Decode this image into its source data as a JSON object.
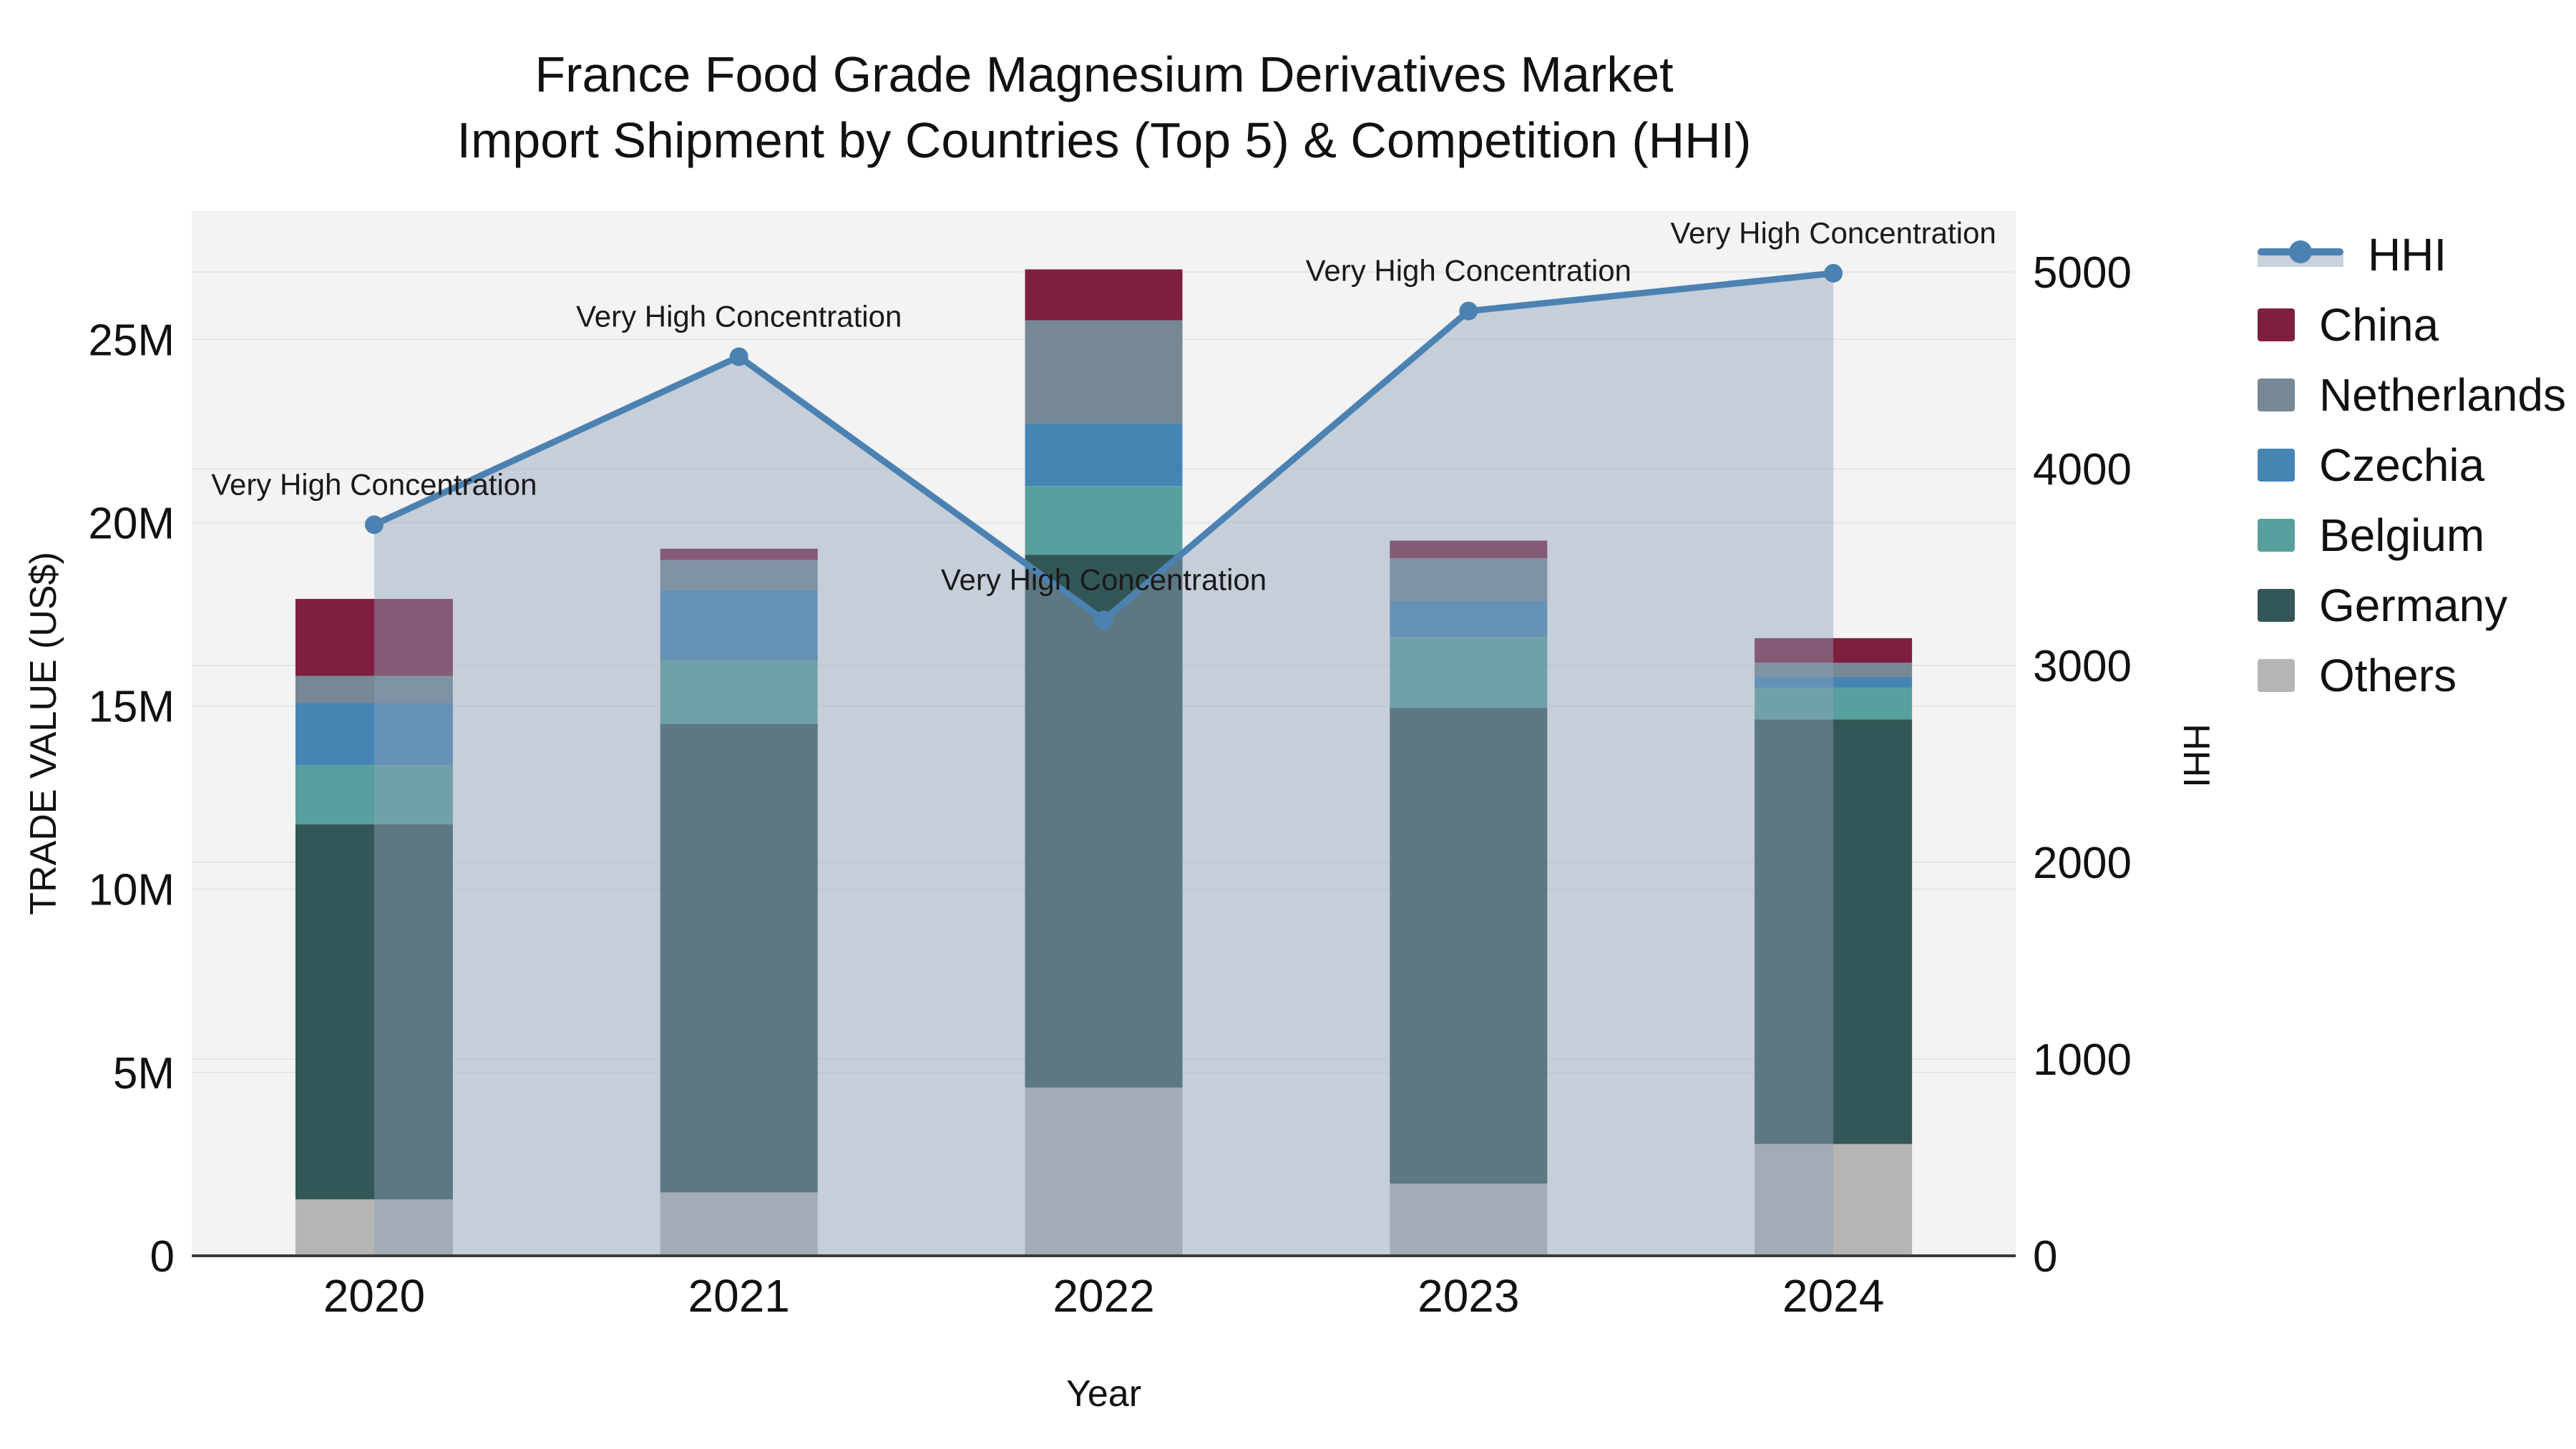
{
  "title": {
    "line1": "France Food Grade Magnesium Derivatives Market",
    "line2": "Import Shipment by Countries (Top 5) & Competition (HHI)"
  },
  "legend": {
    "items": [
      {
        "id": "hhi",
        "label": "HHI",
        "type": "line",
        "color": "#4c82b2"
      },
      {
        "id": "china",
        "label": "China",
        "type": "box",
        "color": "#7f1f3f"
      },
      {
        "id": "netherlands",
        "label": "Netherlands",
        "type": "box",
        "color": "#768795"
      },
      {
        "id": "czechia",
        "label": "Czechia",
        "type": "box",
        "color": "#4684b4"
      },
      {
        "id": "belgium",
        "label": "Belgium",
        "type": "box",
        "color": "#58a09d"
      },
      {
        "id": "germany",
        "label": "Germany",
        "type": "box",
        "color": "#335756"
      },
      {
        "id": "others",
        "label": "Others",
        "type": "box",
        "color": "#b5b5b3"
      }
    ]
  },
  "chart_data": {
    "type": "bar",
    "subtype": "stacked bars (y1) with line+area overlay (y2)",
    "title": "France Food Grade Magnesium Derivatives Market Import Shipment by Countries (Top 5) & Competition (HHI)",
    "xlabel": "Year",
    "ylabel": "TRADE VALUE (US$)",
    "y2label": "HHI",
    "categories": [
      "2020",
      "2021",
      "2022",
      "2023",
      "2024"
    ],
    "series": [
      {
        "name": "Others",
        "color": "#b5b5b3",
        "values": [
          1540000,
          1730000,
          4590000,
          1970000,
          3050000
        ]
      },
      {
        "name": "Germany",
        "color": "#335756",
        "values": [
          10230000,
          12780000,
          14530000,
          12980000,
          11580000
        ]
      },
      {
        "name": "Belgium",
        "color": "#58a09d",
        "values": [
          1620000,
          1730000,
          1880000,
          1930000,
          870000
        ]
      },
      {
        "name": "Czechia",
        "color": "#4684b4",
        "values": [
          1690000,
          1920000,
          1710000,
          990000,
          300000
        ]
      },
      {
        "name": "Netherlands",
        "color": "#768795",
        "values": [
          740000,
          820000,
          2810000,
          1160000,
          380000
        ]
      },
      {
        "name": "China",
        "color": "#7f1f3f",
        "values": [
          2100000,
          310000,
          1390000,
          480000,
          670000
        ]
      }
    ],
    "line_series": {
      "name": "HHI",
      "yaxis": "y2",
      "color": "#4c82b2",
      "area_fill": "rgba(143,162,184,0.45)",
      "values": [
        3716,
        4570,
        3232,
        4802,
        4994
      ]
    },
    "point_annotations": [
      "Very High Concentration",
      "Very High Concentration",
      "Very High Concentration",
      "Very High Concentration",
      "Very High Concentration"
    ],
    "y1_ticks": [
      {
        "value": 0,
        "label": "0"
      },
      {
        "value": 5000000,
        "label": "5M"
      },
      {
        "value": 10000000,
        "label": "10M"
      },
      {
        "value": 15000000,
        "label": "15M"
      },
      {
        "value": 20000000,
        "label": "20M"
      },
      {
        "value": 25000000,
        "label": "25M"
      }
    ],
    "y2_ticks": [
      {
        "value": 0,
        "label": "0"
      },
      {
        "value": 1000,
        "label": "1000"
      },
      {
        "value": 2000,
        "label": "2000"
      },
      {
        "value": 3000,
        "label": "3000"
      },
      {
        "value": 4000,
        "label": "4000"
      },
      {
        "value": 5000,
        "label": "5000"
      }
    ],
    "y1_range": [
      0,
      28500000
    ],
    "y2_range": [
      0,
      5310
    ],
    "grid": true,
    "legend_position": "right",
    "plot_bg": "#f3f3f4",
    "grid_color": "#e5e5e8",
    "axis_line_color": "#3a3a3a",
    "annotation_color": "#1a1a1a"
  }
}
